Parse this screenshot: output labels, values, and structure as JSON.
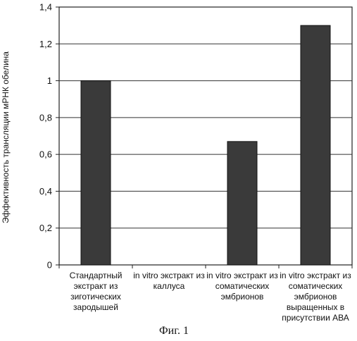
{
  "chart_data": {
    "type": "bar",
    "title": "",
    "xlabel": "",
    "ylabel": "Эффективность трансляции мРНК обелина",
    "ylim": [
      0,
      1.4
    ],
    "yticks": [
      "0",
      "0,2",
      "0,4",
      "0,6",
      "0,8",
      "1",
      "1,2",
      "1,4"
    ],
    "ytick_values": [
      0,
      0.2,
      0.4,
      0.6,
      0.8,
      1.0,
      1.2,
      1.4
    ],
    "grid": true,
    "categories": [
      [
        "Стандартный",
        "экстракт из",
        "зиготических",
        "зародышей"
      ],
      [
        "in vitro экстракт из",
        "каллуса"
      ],
      [
        "in vitro экстракт из",
        "соматических",
        "эмбрионов"
      ],
      [
        "in vitro экстракт из",
        "соматических",
        "эмбрионов",
        "выращенных в",
        "присутствии АВА"
      ]
    ],
    "values": [
      1.0,
      0.0,
      0.67,
      1.3
    ],
    "bar_color": "#3a3a3a"
  },
  "caption": "Фиг. 1"
}
